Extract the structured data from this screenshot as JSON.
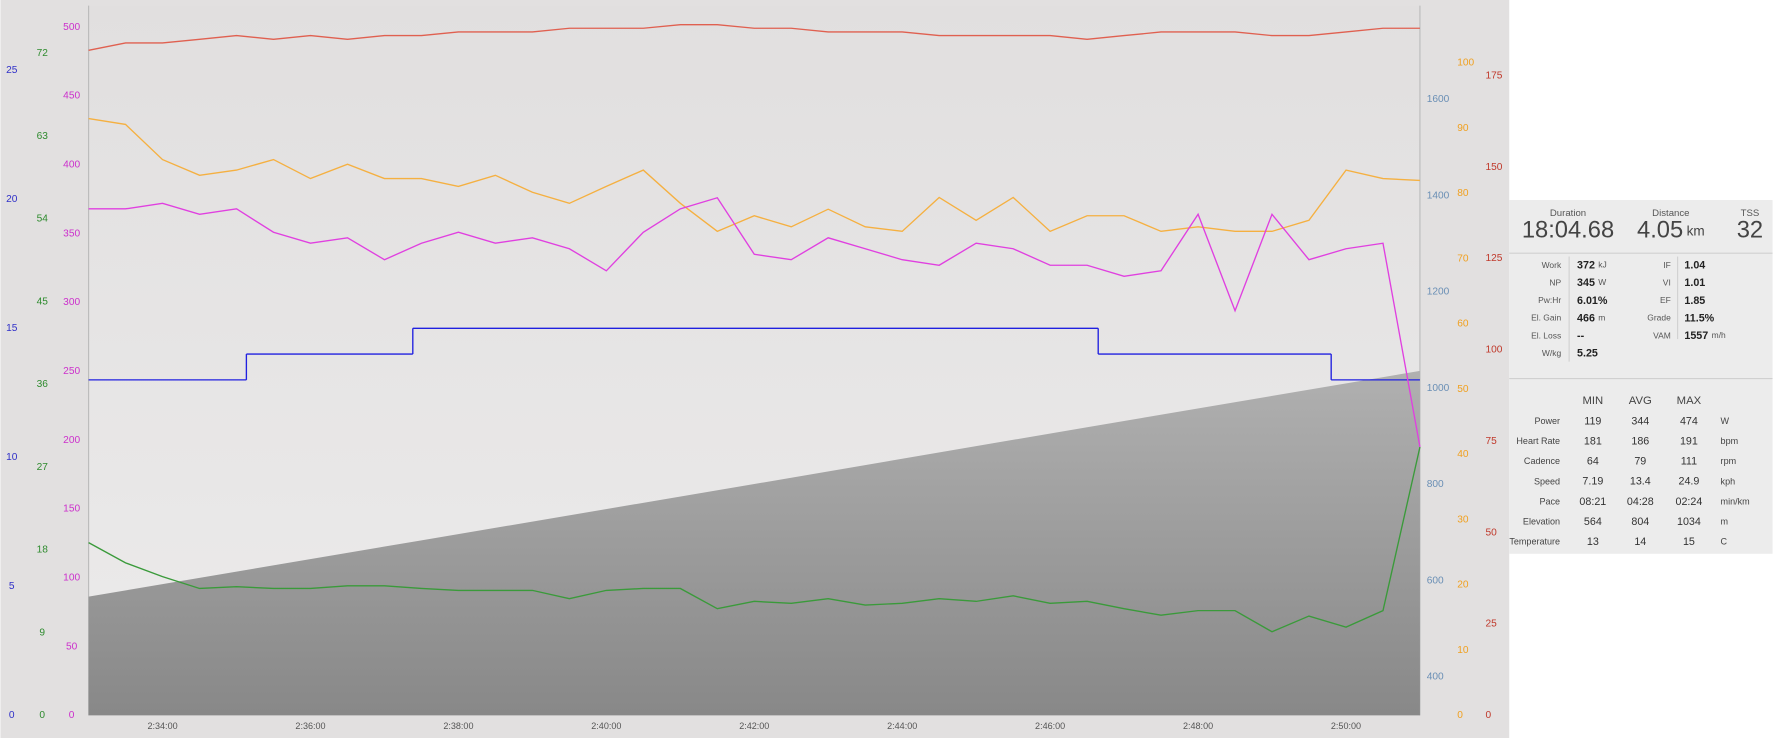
{
  "chart_data": {
    "type": "line",
    "xlim": [
      9180,
      10260
    ],
    "xticks": [
      {
        "value": 9240,
        "label": "2:34:00"
      },
      {
        "value": 9360,
        "label": "2:36:00"
      },
      {
        "value": 9480,
        "label": "2:38:00"
      },
      {
        "value": 9600,
        "label": "2:40:00"
      },
      {
        "value": 9720,
        "label": "2:42:00"
      },
      {
        "value": 9840,
        "label": "2:44:00"
      },
      {
        "value": 9960,
        "label": "2:46:00"
      },
      {
        "value": 10080,
        "label": "2:48:00"
      },
      {
        "value": 10200,
        "label": "2:50:00"
      }
    ],
    "y_axes": [
      {
        "side": "left",
        "color": "#3030c8",
        "ylim": [
          0,
          27.5
        ],
        "yticks": [
          0,
          5,
          10,
          15,
          20,
          25
        ]
      },
      {
        "side": "left",
        "color": "#2e8b2e",
        "ylim": [
          0,
          77.2
        ],
        "yticks": [
          0,
          9,
          18,
          27,
          36,
          45,
          54,
          63,
          72
        ]
      },
      {
        "side": "left",
        "color": "#cc30cc",
        "ylim": [
          0,
          515.6
        ],
        "yticks": [
          0,
          50,
          100,
          150,
          200,
          250,
          300,
          350,
          400,
          450,
          500
        ]
      },
      {
        "side": "right",
        "color": "#6a8fb5",
        "ylim": [
          320.2,
          1794.9
        ],
        "yticks": [
          400,
          600,
          800,
          1000,
          1200,
          1400,
          1600
        ]
      },
      {
        "side": "right",
        "color": "#f0a020",
        "ylim": [
          0,
          108.8
        ],
        "yticks": [
          0,
          10,
          20,
          30,
          40,
          50,
          60,
          70,
          80,
          90,
          100
        ]
      },
      {
        "side": "right",
        "color": "#c0392b",
        "ylim": [
          0,
          194.2
        ],
        "yticks": [
          0,
          25,
          50,
          75,
          100,
          125,
          150,
          175
        ]
      }
    ],
    "x": [
      9180,
      9210,
      9240,
      9270,
      9300,
      9330,
      9360,
      9390,
      9420,
      9450,
      9480,
      9510,
      9540,
      9570,
      9600,
      9630,
      9660,
      9690,
      9720,
      9750,
      9780,
      9810,
      9840,
      9870,
      9900,
      9930,
      9960,
      9990,
      10020,
      10050,
      10080,
      10110,
      10140,
      10170,
      10200,
      10230,
      10260
    ],
    "series": [
      {
        "axis": 3,
        "area": true,
        "color": "#8e8e8e",
        "x": [
          9180,
          9450,
          9720,
          9990,
          10260
        ],
        "values": [
          567,
          684,
          801,
          919,
          1036
        ]
      },
      {
        "axis": 0,
        "step": true,
        "color": "#2020e0",
        "x": [
          9180,
          9308,
          9443,
          9999,
          10188
        ],
        "values": [
          13,
          14,
          15,
          14,
          13
        ]
      },
      {
        "axis": 5,
        "color": "#e06050",
        "values": [
          182,
          184,
          184,
          185,
          186,
          185,
          186,
          185,
          186,
          186,
          187,
          187,
          187,
          188,
          188,
          188,
          189,
          189,
          188,
          188,
          187,
          187,
          187,
          186,
          186,
          186,
          186,
          185,
          186,
          187,
          187,
          187,
          186,
          186,
          187,
          188,
          188
        ]
      },
      {
        "axis": 4,
        "color": "#f5b041",
        "values": [
          91.5,
          90.6,
          85.2,
          82.8,
          83.6,
          85.2,
          82.3,
          84.5,
          82.3,
          82.3,
          81.1,
          82.8,
          80.2,
          78.5,
          81.1,
          83.6,
          78.5,
          74.2,
          76.6,
          74.9,
          77.6,
          74.9,
          74.2,
          79.4,
          75.9,
          79.4,
          74.2,
          76.6,
          76.6,
          74.2,
          74.9,
          74.2,
          74.2,
          75.9,
          83.6,
          82.3,
          82
        ]
      },
      {
        "axis": 2,
        "color": "#e040e0",
        "values": [
          368,
          368,
          372,
          364,
          368,
          351,
          343,
          347,
          331,
          343,
          351,
          343,
          347,
          339,
          323,
          351,
          368,
          376,
          335,
          331,
          347,
          339,
          331,
          327,
          343,
          339,
          327,
          327,
          319,
          323,
          364,
          294,
          364,
          331,
          339,
          343,
          195
        ]
      },
      {
        "axis": 1,
        "color": "#3a9a3a",
        "values": [
          18.8,
          16.6,
          15.1,
          13.8,
          14,
          13.8,
          13.8,
          14.1,
          14.1,
          13.8,
          13.6,
          13.6,
          13.6,
          12.7,
          13.6,
          13.8,
          13.8,
          11.6,
          12.4,
          12.2,
          12.7,
          12,
          12.2,
          12.7,
          12.4,
          13,
          12.2,
          12.4,
          11.6,
          10.9,
          11.4,
          11.4,
          9.1,
          10.8,
          9.6,
          11.4,
          29.2
        ]
      }
    ]
  },
  "summary": {
    "top": [
      {
        "label": "Duration",
        "value": "18:04.68"
      },
      {
        "label": "Distance",
        "value": "4.05",
        "unit": "km"
      },
      {
        "label": "TSS",
        "value": "32"
      }
    ],
    "left": [
      {
        "label": "Work",
        "value": "372",
        "unit": "kJ"
      },
      {
        "label": "NP",
        "value": "345",
        "unit": "W"
      },
      {
        "label": "Pw:Hr",
        "value": "6.01%"
      },
      {
        "label": "El. Gain",
        "value": "466",
        "unit": "m"
      },
      {
        "label": "El. Loss",
        "value": "--"
      },
      {
        "label": "W/kg",
        "value": "5.25"
      }
    ],
    "right": [
      {
        "label": "IF",
        "value": "1.04"
      },
      {
        "label": "VI",
        "value": "1.01"
      },
      {
        "label": "EF",
        "value": "1.85"
      },
      {
        "label": "Grade",
        "value": "11.5%"
      },
      {
        "label": "VAM",
        "value": "1557",
        "unit": "m/h"
      }
    ],
    "table": {
      "columns": [
        "MIN",
        "AVG",
        "MAX"
      ],
      "rows": [
        {
          "label": "Power",
          "values": [
            "119",
            "344",
            "474"
          ],
          "unit": "W"
        },
        {
          "label": "Heart Rate",
          "values": [
            "181",
            "186",
            "191"
          ],
          "unit": "bpm"
        },
        {
          "label": "Cadence",
          "values": [
            "64",
            "79",
            "111"
          ],
          "unit": "rpm"
        },
        {
          "label": "Speed",
          "values": [
            "7.19",
            "13.4",
            "24.9"
          ],
          "unit": "kph"
        },
        {
          "label": "Pace",
          "values": [
            "08:21",
            "04:28",
            "02:24"
          ],
          "unit": "min/km"
        },
        {
          "label": "Elevation",
          "values": [
            "564",
            "804",
            "1034"
          ],
          "unit": "m"
        },
        {
          "label": "Temperature",
          "values": [
            "13",
            "14",
            "15"
          ],
          "unit": "C"
        }
      ]
    }
  }
}
